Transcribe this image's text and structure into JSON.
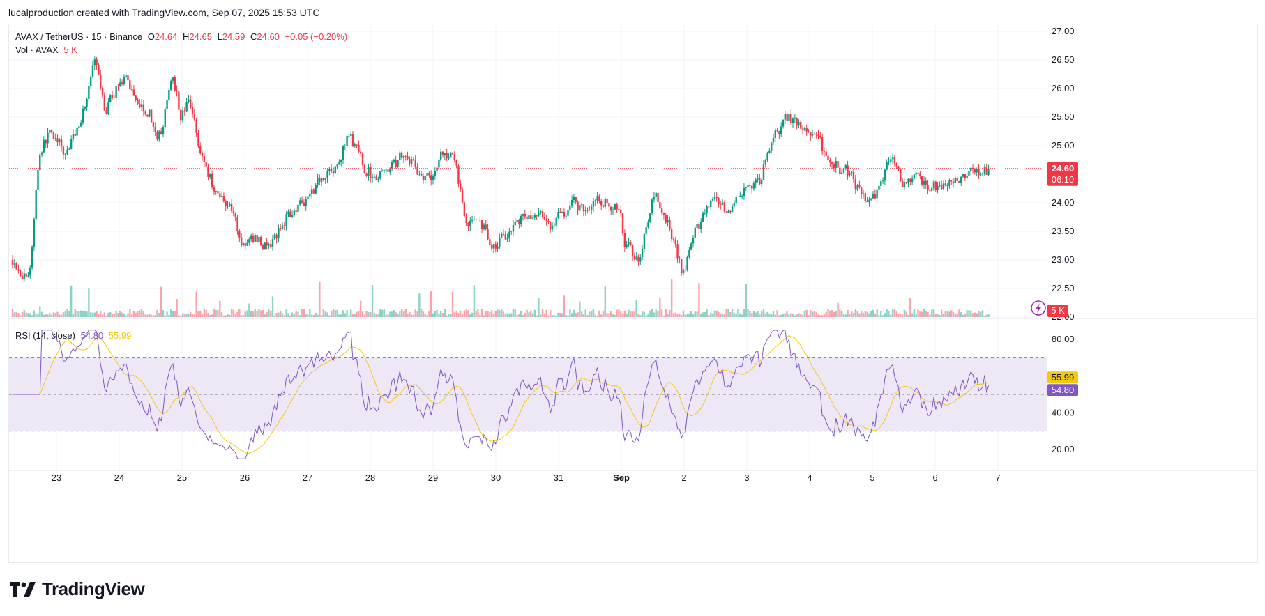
{
  "header": {
    "attribution": "lucalproduction created with TradingView.com, Sep 07, 2025 15:53 UTC"
  },
  "legend": {
    "symbol": "AVAX / TetherUS · 15 · Binance",
    "o_label": "O",
    "o_value": "24.64",
    "h_label": "H",
    "h_value": "24.65",
    "l_label": "L",
    "l_value": "24.59",
    "c_label": "C",
    "c_value": "24.60",
    "change": "−0.05 (−0.20%)",
    "vol_label": "Vol · AVAX",
    "vol_value": "5 K",
    "rsi_label": "RSI (14, close)",
    "rsi_value": "54.80",
    "rsi_ma_value": "55.99"
  },
  "price_tag": {
    "price": "24.60",
    "countdown": "06:10"
  },
  "volume_tag": "5 K",
  "rsi_tags": {
    "ma": "55.99",
    "rsi": "54.80"
  },
  "footer": {
    "brand": "TradingView"
  },
  "colors": {
    "up": "#089981",
    "down": "#f23645",
    "rsi": "#7e57c2",
    "rsi_ma": "#f2c811",
    "band": "#ede7f6",
    "grid": "#f0f3fa"
  },
  "chart_data": {
    "type": "candlestick",
    "price_axis": {
      "ticks": [
        "27.00",
        "26.50",
        "26.00",
        "25.50",
        "25.00",
        "24.50",
        "24.00",
        "23.50",
        "23.00",
        "22.50",
        "22.00"
      ],
      "ylim": [
        22.0,
        27.0
      ]
    },
    "rsi_axis": {
      "ticks": [
        "80.00",
        "40.00",
        "20.00"
      ],
      "ylim": [
        10,
        88
      ],
      "bands": [
        30,
        50,
        70
      ]
    },
    "time_axis": {
      "ticks": [
        "23",
        "24",
        "25",
        "26",
        "27",
        "28",
        "29",
        "30",
        "31",
        "Sep",
        "2",
        "3",
        "4",
        "5",
        "6",
        "7"
      ]
    },
    "price_path": [
      {
        "t": 22.3,
        "p": 23.0
      },
      {
        "t": 22.55,
        "p": 22.6
      },
      {
        "t": 22.7,
        "p": 24.9
      },
      {
        "t": 22.9,
        "p": 25.3
      },
      {
        "t": 23.1,
        "p": 24.8
      },
      {
        "t": 23.35,
        "p": 25.4
      },
      {
        "t": 23.6,
        "p": 26.5
      },
      {
        "t": 23.75,
        "p": 25.5
      },
      {
        "t": 24.0,
        "p": 26.2
      },
      {
        "t": 24.3,
        "p": 25.8
      },
      {
        "t": 24.5,
        "p": 25.5
      },
      {
        "t": 24.6,
        "p": 24.9
      },
      {
        "t": 24.85,
        "p": 26.4
      },
      {
        "t": 24.95,
        "p": 25.4
      },
      {
        "t": 25.1,
        "p": 25.8
      },
      {
        "t": 25.3,
        "p": 24.8
      },
      {
        "t": 25.5,
        "p": 24.2
      },
      {
        "t": 25.75,
        "p": 24.0
      },
      {
        "t": 25.95,
        "p": 23.2
      },
      {
        "t": 26.15,
        "p": 23.4
      },
      {
        "t": 26.4,
        "p": 23.2
      },
      {
        "t": 26.7,
        "p": 23.9
      },
      {
        "t": 26.95,
        "p": 24.1
      },
      {
        "t": 27.2,
        "p": 24.5
      },
      {
        "t": 27.45,
        "p": 24.6
      },
      {
        "t": 27.65,
        "p": 25.2
      },
      {
        "t": 27.95,
        "p": 24.5
      },
      {
        "t": 28.2,
        "p": 24.5
      },
      {
        "t": 28.5,
        "p": 24.9
      },
      {
        "t": 28.75,
        "p": 24.6
      },
      {
        "t": 28.95,
        "p": 24.3
      },
      {
        "t": 29.1,
        "p": 24.9
      },
      {
        "t": 29.35,
        "p": 24.7
      },
      {
        "t": 29.5,
        "p": 23.6
      },
      {
        "t": 29.75,
        "p": 23.7
      },
      {
        "t": 29.95,
        "p": 23.2
      },
      {
        "t": 30.15,
        "p": 23.5
      },
      {
        "t": 30.4,
        "p": 23.8
      },
      {
        "t": 30.7,
        "p": 23.7
      },
      {
        "t": 30.9,
        "p": 23.6
      },
      {
        "t": 31.2,
        "p": 24.0
      },
      {
        "t": 31.45,
        "p": 23.9
      },
      {
        "t": 31.7,
        "p": 24.05
      },
      {
        "t": 31.95,
        "p": 23.9
      },
      {
        "t": 32.05,
        "p": 23.2
      },
      {
        "t": 32.25,
        "p": 23.0
      },
      {
        "t": 32.5,
        "p": 24.1
      },
      {
        "t": 32.75,
        "p": 23.6
      },
      {
        "t": 32.95,
        "p": 22.8
      },
      {
        "t": 33.2,
        "p": 23.6
      },
      {
        "t": 33.45,
        "p": 24.0
      },
      {
        "t": 33.7,
        "p": 23.7
      },
      {
        "t": 33.95,
        "p": 24.2
      },
      {
        "t": 34.2,
        "p": 24.4
      },
      {
        "t": 34.35,
        "p": 25.0
      },
      {
        "t": 34.6,
        "p": 25.5
      },
      {
        "t": 34.85,
        "p": 25.3
      },
      {
        "t": 35.05,
        "p": 25.2
      },
      {
        "t": 35.3,
        "p": 24.7
      },
      {
        "t": 35.6,
        "p": 24.6
      },
      {
        "t": 35.85,
        "p": 24.0
      },
      {
        "t": 36.05,
        "p": 24.2
      },
      {
        "t": 36.3,
        "p": 24.9
      },
      {
        "t": 36.45,
        "p": 24.3
      },
      {
        "t": 36.75,
        "p": 24.4
      },
      {
        "t": 37.05,
        "p": 24.2
      },
      {
        "t": 37.3,
        "p": 24.4
      },
      {
        "t": 37.55,
        "p": 24.5
      },
      {
        "t": 37.75,
        "p": 24.6
      },
      {
        "t": 37.85,
        "p": 24.6
      }
    ],
    "rsi_last": 54.8,
    "rsi_ma_last": 55.99,
    "last_price": 24.6
  }
}
